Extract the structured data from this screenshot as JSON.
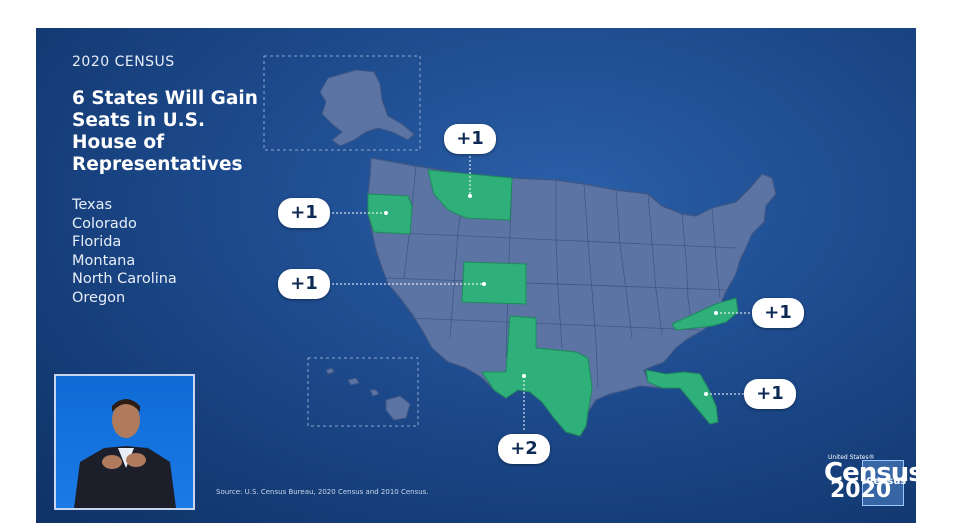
{
  "slide": {
    "kicker": "2020 CENSUS",
    "headline": "6 States Will Gain Seats in U.S. House of Representatives",
    "states": [
      "Texas",
      "Colorado",
      "Florida",
      "Montana",
      "North Carolina",
      "Oregon"
    ],
    "source": "Source: U.S. Census Bureau, 2020 Census and 2010 Census."
  },
  "badges": {
    "montana": "+1",
    "oregon": "+1",
    "colorado": "+1",
    "north_carolina": "+1",
    "florida": "+1",
    "texas": "+2"
  },
  "logo": {
    "top": "United States®",
    "word": "Census",
    "year": "2020",
    "box": "Census"
  },
  "colors": {
    "background": "#1d4a8c",
    "map_fill": "#5b74a3",
    "highlight": "#2fb07a",
    "badge_bg": "#ffffff"
  }
}
